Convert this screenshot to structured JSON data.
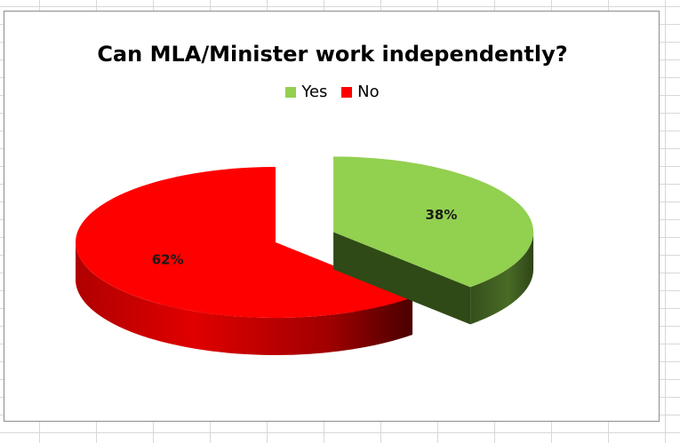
{
  "chart_data": {
    "type": "pie",
    "title": "Can MLA/Minister work independently?",
    "legend_position": "top",
    "series": [
      {
        "name": "",
        "slices": [
          {
            "label": "Yes",
            "value": 38,
            "display": "38%",
            "color": "#92d050",
            "exploded": true
          },
          {
            "label": "No",
            "value": 62,
            "display": "62%",
            "color": "#ff0000",
            "exploded": false
          }
        ]
      }
    ]
  }
}
